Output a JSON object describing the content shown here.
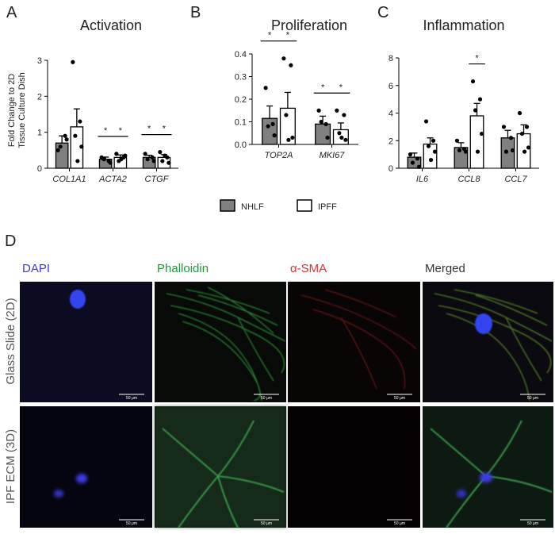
{
  "chart_data": [
    {
      "type": "bar",
      "panel": "A",
      "title": "Activation",
      "y_label": [
        "Fold Change to 2D",
        "Tissue Culture Dish"
      ],
      "categories": [
        "COL1A1",
        "ACTA2",
        "CTGF"
      ],
      "ylim": [
        0,
        3
      ],
      "yticks": [
        0,
        1,
        2,
        3
      ],
      "significance_label": "*",
      "series": [
        {
          "color": "#808080",
          "values": [
            0.7,
            0.25,
            0.3
          ],
          "errors": [
            0.2,
            0.06,
            0.06
          ],
          "points": [
            [
              0.5,
              0.9,
              0.6,
              0.8
            ],
            [
              0.3,
              0.2,
              0.25,
              0.15
            ],
            [
              0.4,
              0.3,
              0.25,
              0.2
            ]
          ],
          "significant": [
            false,
            true,
            true
          ]
        },
        {
          "color": "#ffffff",
          "values": [
            1.15,
            0.3,
            0.3
          ],
          "errors": [
            0.5,
            0.07,
            0.08
          ],
          "points": [
            [
              2.95,
              1.3,
              0.9,
              0.6,
              0.2
            ],
            [
              0.4,
              0.3,
              0.2,
              0.35,
              0.25
            ],
            [
              0.45,
              0.3,
              0.2,
              0.15,
              0.35
            ]
          ],
          "significant": [
            false,
            true,
            true
          ]
        }
      ]
    },
    {
      "type": "bar",
      "panel": "B",
      "title": "Proliferation",
      "categories": [
        "TOP2A",
        "MKI67"
      ],
      "ylim": [
        0,
        0.4
      ],
      "yticks": [
        {
          "value": 0,
          "label": "0.0"
        },
        0.1,
        0.2,
        0.3,
        0.4
      ],
      "significance_label": "*",
      "series": [
        {
          "name": "NHLF",
          "color": "#808080",
          "values": [
            0.115,
            0.09
          ],
          "errors": [
            0.055,
            0.035
          ],
          "points": [
            [
              0.25,
              0.09,
              0.08,
              0.04
            ],
            [
              0.15,
              0.09,
              0.1,
              0.03
            ]
          ],
          "significant": [
            true,
            true
          ]
        },
        {
          "name": "IPFF",
          "color": "#ffffff",
          "values": [
            0.16,
            0.065
          ],
          "errors": [
            0.07,
            0.03
          ],
          "points": [
            [
              0.38,
              0.35,
              0.13,
              0.03,
              0.02
            ],
            [
              0.15,
              0.13,
              0.05,
              0.02,
              0.03
            ]
          ],
          "significant": [
            true,
            true
          ]
        }
      ]
    },
    {
      "type": "bar",
      "panel": "C",
      "title": "Inflammation",
      "categories": [
        "IL6",
        "CCL8",
        "CCL7"
      ],
      "ylim": [
        0,
        8
      ],
      "yticks": [
        0,
        2,
        4,
        6,
        8
      ],
      "significance_label": "*",
      "series": [
        {
          "color": "#808080",
          "values": [
            0.8,
            1.5,
            2.2
          ],
          "errors": [
            0.3,
            0.35,
            0.55
          ],
          "points": [
            [
              1.0,
              0.7,
              0.4,
              0.1
            ],
            [
              2.0,
              1.4,
              1.3,
              1.2
            ],
            [
              3.0,
              2.2,
              1.2,
              1.3
            ]
          ],
          "significant": [
            false,
            false,
            false
          ]
        },
        {
          "color": "#ffffff",
          "values": [
            1.75,
            3.8,
            2.5
          ],
          "errors": [
            0.45,
            0.9,
            0.65
          ],
          "points": [
            [
              3.4,
              2.0,
              1.6,
              1.2,
              0.6
            ],
            [
              6.3,
              5.0,
              4.2,
              2.5,
              1.2
            ],
            [
              4.0,
              3.0,
              2.5,
              1.5,
              1.2
            ]
          ],
          "significant": [
            false,
            true,
            false
          ]
        }
      ]
    }
  ],
  "microscopy": {
    "panel": "D",
    "columns": [
      "DAPI",
      "Phalloidin",
      "α-SMA",
      "Merged"
    ],
    "rows": [
      "Glass Slide (2D)",
      "IPF ECM (3D)"
    ],
    "scale_bar": "50 μm"
  }
}
